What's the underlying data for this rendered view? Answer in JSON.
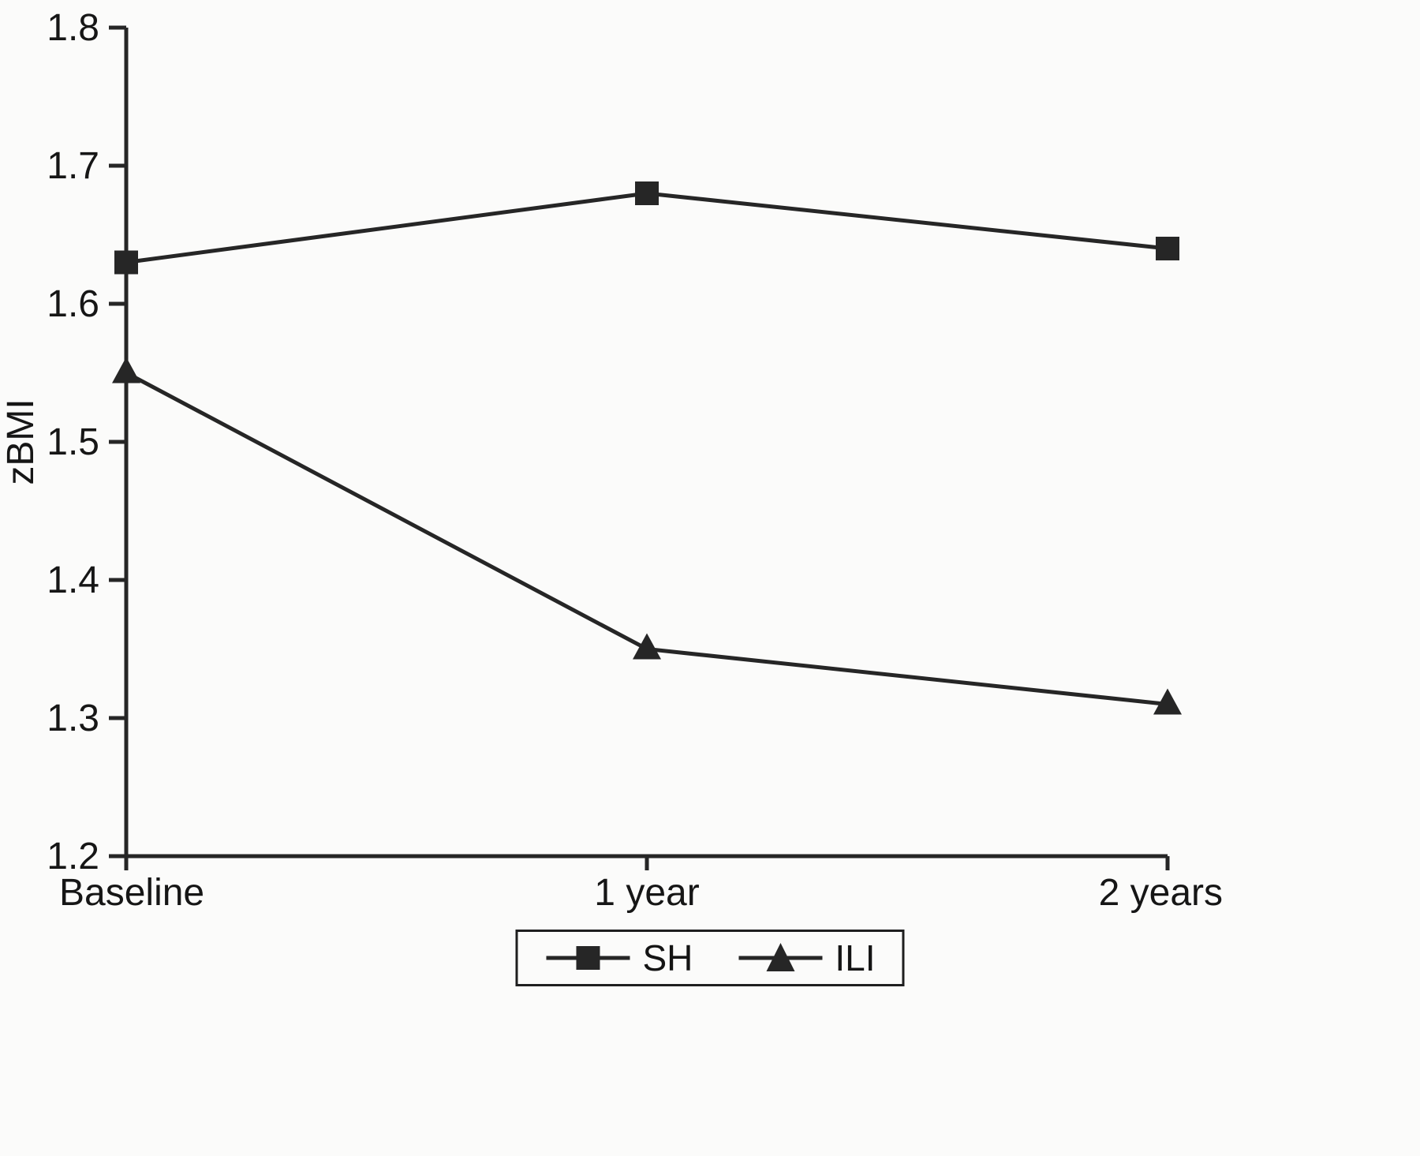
{
  "figure": {
    "title": ""
  },
  "chart_data": {
    "type": "line",
    "categories": [
      "Baseline",
      "1 year",
      "2 years"
    ],
    "series": [
      {
        "name": "SH",
        "marker": "square",
        "values": [
          1.63,
          1.68,
          1.64
        ]
      },
      {
        "name": "ILI",
        "marker": "triangle",
        "values": [
          1.55,
          1.35,
          1.31
        ]
      }
    ],
    "title": "",
    "xlabel": "",
    "ylabel": "zBMI",
    "ylim": [
      1.2,
      1.8
    ],
    "yticks": [
      1.2,
      1.3,
      1.4,
      1.5,
      1.6,
      1.7,
      1.8
    ],
    "grid": false,
    "legend_position": "bottom",
    "line_color": "#262626",
    "text_color": "#161616"
  }
}
